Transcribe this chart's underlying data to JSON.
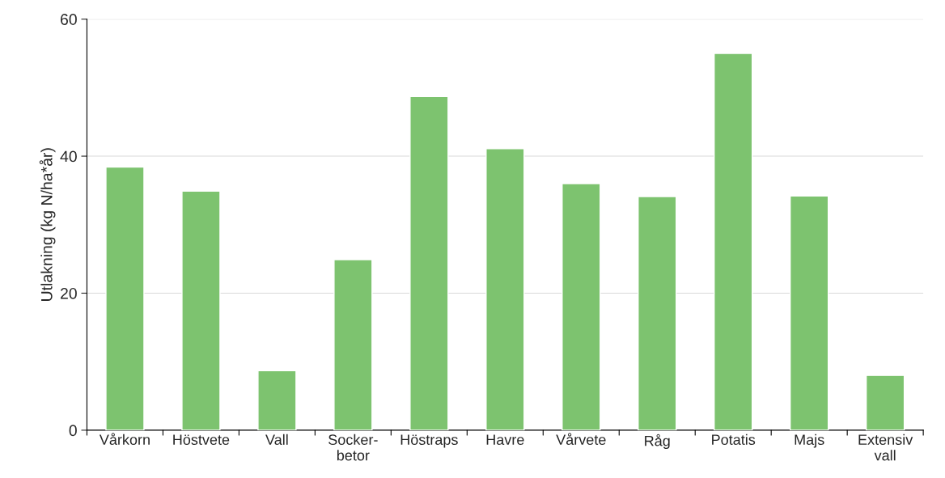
{
  "chart_data": {
    "type": "bar",
    "ylabel": "Utlakning (kg N/ha*år)",
    "categories": [
      "Vårkorn",
      "Höstvete",
      "Vall",
      "Socker-\nbetor",
      "Höstraps",
      "Havre",
      "Vårvete",
      "Råg",
      "Potatis",
      "Majs",
      "Extensiv\nvall"
    ],
    "values": [
      38.4,
      34.9,
      8.7,
      24.9,
      48.7,
      41.1,
      36.0,
      34.1,
      55.0,
      34.2,
      8.0
    ],
    "color": "#7dc36f",
    "ylim": [
      0,
      60
    ],
    "yticks": [
      0,
      20,
      40,
      60
    ],
    "grid": "y"
  }
}
